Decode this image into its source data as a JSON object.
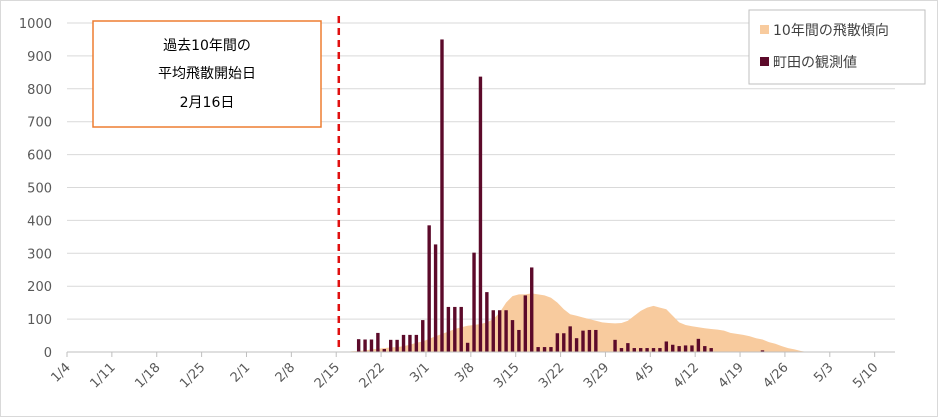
{
  "chart_data": {
    "type": "bar",
    "x_axis": {
      "type": "date",
      "start": "1/4",
      "end": "5/16",
      "tick_labels": [
        "1/4",
        "1/11",
        "1/18",
        "1/25",
        "2/1",
        "2/8",
        "2/15",
        "2/22",
        "3/1",
        "3/8",
        "3/15",
        "3/22",
        "3/29",
        "4/5",
        "4/12",
        "4/19",
        "4/26",
        "5/3",
        "5/10"
      ]
    },
    "y_axis": {
      "ylim": [
        0,
        1000
      ],
      "tick_labels": [
        "0",
        "100",
        "200",
        "300",
        "400",
        "500",
        "600",
        "700",
        "800",
        "900",
        "1000"
      ]
    },
    "grid": "horizontal",
    "legend_position": "top-right",
    "series": [
      {
        "name": "10年間の飛散傾向",
        "type": "area",
        "color": "#f8cb9e",
        "start": "2/16",
        "values": [
          0,
          2,
          3,
          5,
          8,
          10,
          12,
          14,
          15,
          18,
          22,
          28,
          32,
          40,
          48,
          55,
          62,
          70,
          75,
          80,
          82,
          85,
          90,
          100,
          120,
          150,
          170,
          175,
          175,
          178,
          175,
          172,
          165,
          150,
          130,
          115,
          110,
          105,
          100,
          95,
          90,
          88,
          87,
          88,
          95,
          110,
          125,
          135,
          140,
          135,
          130,
          110,
          90,
          82,
          78,
          75,
          72,
          70,
          68,
          65,
          58,
          55,
          52,
          48,
          42,
          38,
          30,
          25,
          18,
          12,
          8,
          3,
          0
        ]
      },
      {
        "name": "町田の観測値",
        "type": "bar",
        "color": "#5c0a2a",
        "start": "2/18",
        "values": [
          39,
          38,
          38,
          58,
          9,
          37,
          37,
          52,
          52,
          52,
          97,
          385,
          327,
          950,
          137,
          137,
          137,
          28,
          302,
          837,
          182,
          127,
          127,
          127,
          97,
          67,
          172,
          257,
          15,
          15,
          15,
          57,
          57,
          78,
          42,
          65,
          67,
          67,
          0,
          0,
          37,
          12,
          27,
          12,
          12,
          12,
          12,
          12,
          32,
          22,
          18,
          20,
          20,
          40,
          18,
          12,
          0,
          0,
          0,
          0,
          0,
          0,
          0,
          5
        ]
      }
    ],
    "annotations": [
      {
        "type": "vertical-dashed-line",
        "x": "2/16",
        "color": "#e01010"
      },
      {
        "type": "text-box",
        "lines": [
          "過去10年間の",
          "平均飛散開始日",
          "2月16日"
        ],
        "border_color": "#ed7d31"
      }
    ]
  }
}
